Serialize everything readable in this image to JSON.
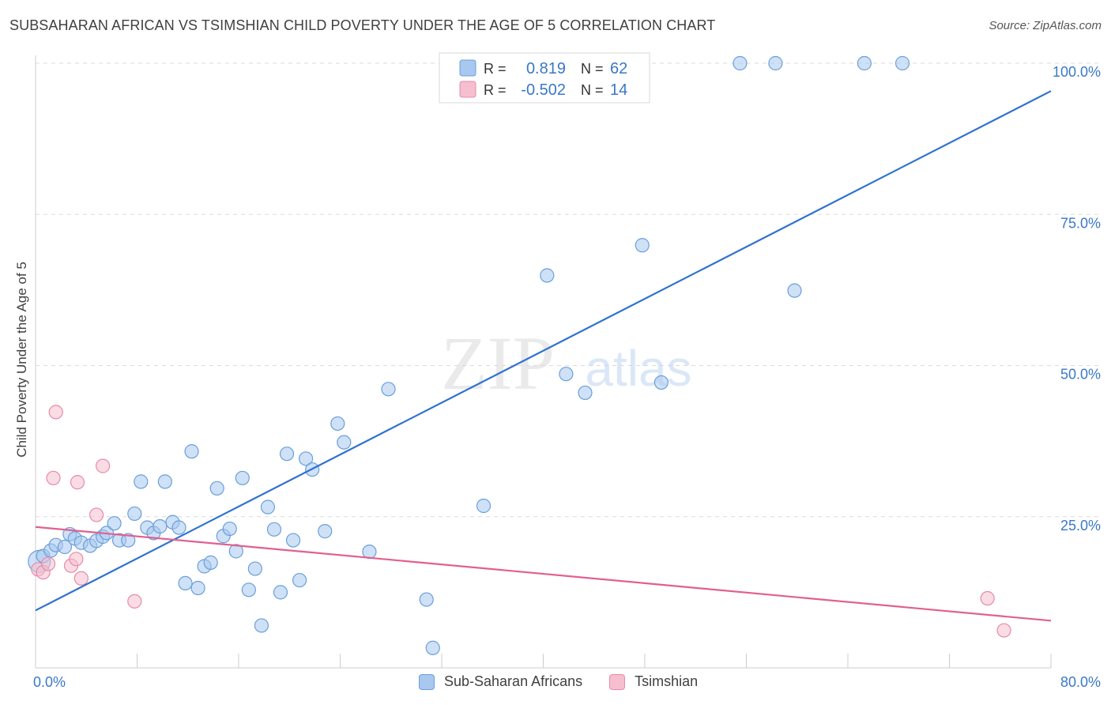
{
  "title": "SUBSAHARAN AFRICAN VS TSIMSHIAN CHILD POVERTY UNDER THE AGE OF 5 CORRELATION CHART",
  "source": "Source: ZipAtlas.com",
  "watermark": {
    "zip": "ZIP",
    "atlas": "atlas"
  },
  "colors": {
    "blue_fill": "#a8c8f0",
    "blue_stroke": "#6a9fd8",
    "blue_line": "#2f72d0",
    "pink_fill": "#f6bfd0",
    "pink_stroke": "#e88aa8",
    "pink_line": "#e06090",
    "axis_text": "#3a78c8"
  },
  "legend": {
    "rows": [
      {
        "r_label": "R =",
        "r_value": "0.819",
        "n_label": "N =",
        "n_value": "62"
      },
      {
        "r_label": "R =",
        "r_value": "-0.502",
        "n_label": "N =",
        "n_value": "14"
      }
    ]
  },
  "bottom_legend": [
    "Sub-Saharan Africans",
    "Tsimshian"
  ],
  "chart_data": {
    "type": "scatter",
    "title": "SUBSAHARAN AFRICAN VS TSIMSHIAN CHILD POVERTY UNDER THE AGE OF 5 CORRELATION CHART",
    "xlabel": "",
    "ylabel": "Child Poverty Under the Age of 5",
    "xlim": [
      0,
      80
    ],
    "ylim": [
      0,
      103
    ],
    "x_tick_labels": [
      "0.0%",
      "80.0%"
    ],
    "y_tick_values": [
      25,
      50,
      75,
      100
    ],
    "y_tick_labels": [
      "25.0%",
      "50.0%",
      "75.0%",
      "100.0%"
    ],
    "grid": true,
    "legend_position": "top-center",
    "series": [
      {
        "name": "Sub-Saharan Africans",
        "points": [
          [
            0.3,
            17.6
          ],
          [
            0.6,
            18.5
          ],
          [
            1.2,
            19.4
          ],
          [
            1.6,
            20.3
          ],
          [
            2.3,
            20.0
          ],
          [
            2.7,
            22.1
          ],
          [
            3.1,
            21.4
          ],
          [
            3.6,
            20.7
          ],
          [
            4.3,
            20.2
          ],
          [
            4.8,
            21.0
          ],
          [
            5.3,
            21.7
          ],
          [
            5.6,
            22.3
          ],
          [
            6.2,
            23.9
          ],
          [
            6.6,
            21.1
          ],
          [
            7.3,
            21.1
          ],
          [
            7.8,
            25.5
          ],
          [
            8.3,
            30.8
          ],
          [
            8.8,
            23.2
          ],
          [
            9.3,
            22.3
          ],
          [
            9.8,
            23.4
          ],
          [
            10.2,
            30.8
          ],
          [
            10.8,
            24.1
          ],
          [
            11.3,
            23.2
          ],
          [
            11.8,
            14.0
          ],
          [
            12.3,
            35.8
          ],
          [
            12.8,
            13.2
          ],
          [
            13.3,
            16.8
          ],
          [
            13.8,
            17.4
          ],
          [
            14.3,
            29.7
          ],
          [
            14.8,
            21.8
          ],
          [
            15.3,
            23.0
          ],
          [
            15.8,
            19.3
          ],
          [
            16.3,
            31.4
          ],
          [
            16.8,
            12.9
          ],
          [
            17.3,
            16.4
          ],
          [
            17.8,
            7.0
          ],
          [
            18.3,
            26.6
          ],
          [
            18.8,
            22.9
          ],
          [
            19.3,
            12.5
          ],
          [
            19.8,
            35.4
          ],
          [
            20.3,
            21.1
          ],
          [
            20.8,
            14.5
          ],
          [
            21.3,
            34.6
          ],
          [
            21.8,
            32.8
          ],
          [
            22.8,
            22.6
          ],
          [
            23.8,
            40.4
          ],
          [
            24.3,
            37.3
          ],
          [
            26.3,
            19.2
          ],
          [
            27.8,
            46.1
          ],
          [
            30.8,
            11.3
          ],
          [
            31.3,
            3.3
          ],
          [
            35.3,
            26.8
          ],
          [
            40.3,
            64.9
          ],
          [
            41.8,
            48.6
          ],
          [
            43.3,
            45.5
          ],
          [
            47.8,
            69.9
          ],
          [
            49.3,
            47.2
          ],
          [
            55.5,
            100.0
          ],
          [
            58.3,
            100.0
          ],
          [
            59.8,
            62.4
          ],
          [
            65.3,
            100.0
          ],
          [
            68.3,
            100.0
          ]
        ],
        "trend_line": {
          "x": [
            0,
            80
          ],
          "y": [
            9.5,
            95.4
          ]
        }
      },
      {
        "name": "Tsimshian",
        "points": [
          [
            0.2,
            16.3
          ],
          [
            0.6,
            15.8
          ],
          [
            1.4,
            31.4
          ],
          [
            1.6,
            42.3
          ],
          [
            2.8,
            16.9
          ],
          [
            3.2,
            18.0
          ],
          [
            3.3,
            30.7
          ],
          [
            3.6,
            14.8
          ],
          [
            4.8,
            25.3
          ],
          [
            5.3,
            33.4
          ],
          [
            7.8,
            11.0
          ],
          [
            75.0,
            11.5
          ],
          [
            76.3,
            6.2
          ],
          [
            1.0,
            17.2
          ]
        ],
        "trend_line": {
          "x": [
            0,
            80
          ],
          "y": [
            23.3,
            7.8
          ]
        }
      }
    ]
  }
}
